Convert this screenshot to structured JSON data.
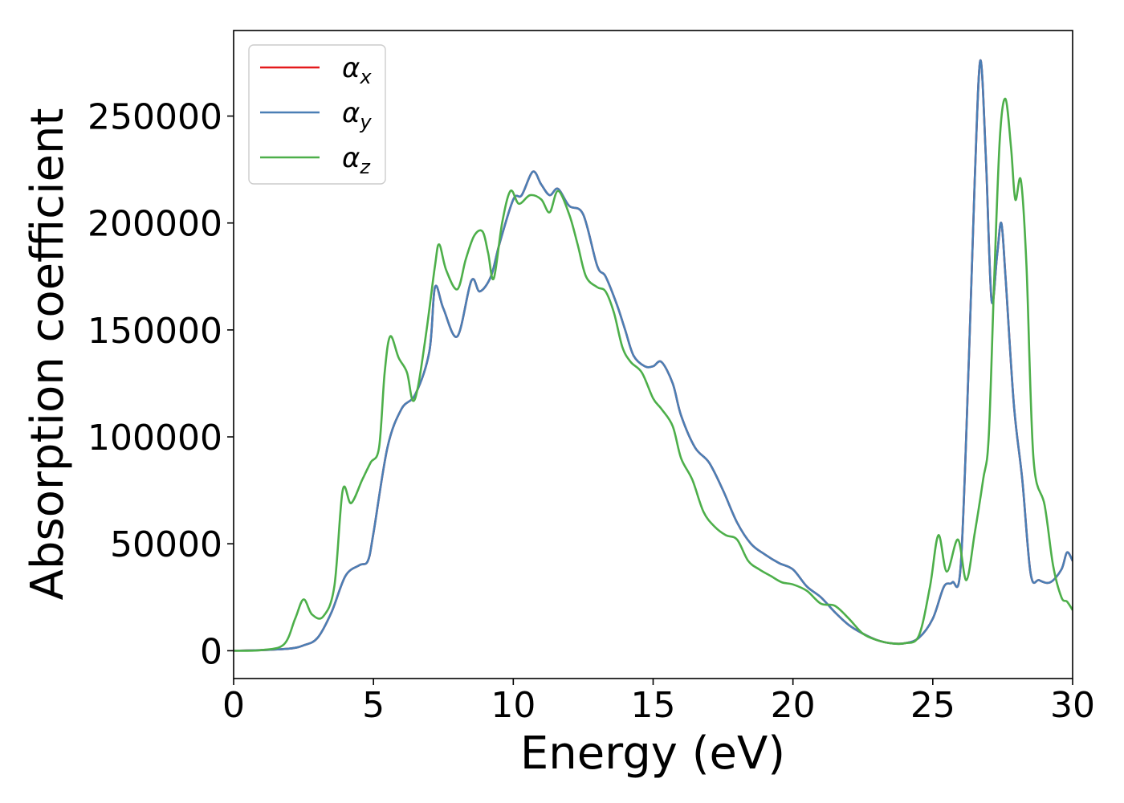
{
  "chart_data": {
    "type": "line",
    "title": "",
    "xlabel": "Energy (eV)",
    "ylabel": "Absorption coefficient",
    "xlim": [
      0,
      30
    ],
    "ylim": [
      -13000,
      290000
    ],
    "x_ticks": [
      0,
      5,
      10,
      15,
      20,
      25,
      30
    ],
    "y_ticks": [
      0,
      50000,
      100000,
      150000,
      200000,
      250000
    ],
    "grid": false,
    "legend_position": "upper-left",
    "series": [
      {
        "name": "α_x",
        "label_main": "α",
        "label_sub": "x",
        "color": "#e41a1c",
        "points": [
          [
            0,
            0
          ],
          [
            1,
            300
          ],
          [
            2,
            1000
          ],
          [
            2.5,
            2500
          ],
          [
            3,
            6000
          ],
          [
            3.5,
            18000
          ],
          [
            4,
            35000
          ],
          [
            4.5,
            40000
          ],
          [
            4.8,
            42000
          ],
          [
            5,
            55000
          ],
          [
            5.5,
            95000
          ],
          [
            6,
            113000
          ],
          [
            6.5,
            120000
          ],
          [
            7,
            140000
          ],
          [
            7.2,
            170000
          ],
          [
            7.5,
            160000
          ],
          [
            8,
            147000
          ],
          [
            8.5,
            173000
          ],
          [
            8.8,
            168000
          ],
          [
            9.2,
            175000
          ],
          [
            9.5,
            190000
          ],
          [
            10,
            211000
          ],
          [
            10.3,
            213000
          ],
          [
            10.7,
            224000
          ],
          [
            11,
            218000
          ],
          [
            11.3,
            213000
          ],
          [
            11.6,
            216000
          ],
          [
            12,
            208000
          ],
          [
            12.5,
            204000
          ],
          [
            13,
            180000
          ],
          [
            13.3,
            175000
          ],
          [
            13.7,
            162000
          ],
          [
            14,
            150000
          ],
          [
            14.3,
            138000
          ],
          [
            14.7,
            133000
          ],
          [
            15,
            133000
          ],
          [
            15.3,
            135000
          ],
          [
            15.7,
            125000
          ],
          [
            16,
            110000
          ],
          [
            16.5,
            95000
          ],
          [
            17,
            88000
          ],
          [
            17.5,
            75000
          ],
          [
            18,
            60000
          ],
          [
            18.5,
            50000
          ],
          [
            19,
            45000
          ],
          [
            19.5,
            41000
          ],
          [
            20,
            38000
          ],
          [
            20.5,
            30000
          ],
          [
            21,
            25000
          ],
          [
            21.5,
            18000
          ],
          [
            22,
            12000
          ],
          [
            22.5,
            8000
          ],
          [
            23,
            5000
          ],
          [
            23.5,
            3500
          ],
          [
            24,
            3500
          ],
          [
            24.5,
            6000
          ],
          [
            25,
            15000
          ],
          [
            25.4,
            30000
          ],
          [
            25.7,
            32000
          ],
          [
            26,
            40000
          ],
          [
            26.3,
            140000
          ],
          [
            26.5,
            220000
          ],
          [
            26.7,
            276000
          ],
          [
            26.9,
            230000
          ],
          [
            27.1,
            164000
          ],
          [
            27.3,
            185000
          ],
          [
            27.45,
            200000
          ],
          [
            27.6,
            175000
          ],
          [
            27.9,
            115000
          ],
          [
            28.2,
            80000
          ],
          [
            28.5,
            36000
          ],
          [
            28.8,
            33000
          ],
          [
            29.2,
            32000
          ],
          [
            29.6,
            38000
          ],
          [
            29.8,
            46000
          ],
          [
            30,
            42000
          ]
        ]
      },
      {
        "name": "α_y",
        "label_main": "α",
        "label_sub": "y",
        "color": "#4a7fb5",
        "points": [
          [
            0,
            0
          ],
          [
            1,
            300
          ],
          [
            2,
            1000
          ],
          [
            2.5,
            2500
          ],
          [
            3,
            6000
          ],
          [
            3.5,
            18000
          ],
          [
            4,
            35000
          ],
          [
            4.5,
            40000
          ],
          [
            4.8,
            42000
          ],
          [
            5,
            55000
          ],
          [
            5.5,
            95000
          ],
          [
            6,
            113000
          ],
          [
            6.5,
            120000
          ],
          [
            7,
            140000
          ],
          [
            7.2,
            170000
          ],
          [
            7.5,
            160000
          ],
          [
            8,
            147000
          ],
          [
            8.5,
            173000
          ],
          [
            8.8,
            168000
          ],
          [
            9.2,
            175000
          ],
          [
            9.5,
            190000
          ],
          [
            10,
            211000
          ],
          [
            10.3,
            213000
          ],
          [
            10.7,
            224000
          ],
          [
            11,
            218000
          ],
          [
            11.3,
            213000
          ],
          [
            11.6,
            216000
          ],
          [
            12,
            208000
          ],
          [
            12.5,
            204000
          ],
          [
            13,
            180000
          ],
          [
            13.3,
            175000
          ],
          [
            13.7,
            162000
          ],
          [
            14,
            150000
          ],
          [
            14.3,
            138000
          ],
          [
            14.7,
            133000
          ],
          [
            15,
            133000
          ],
          [
            15.3,
            135000
          ],
          [
            15.7,
            125000
          ],
          [
            16,
            110000
          ],
          [
            16.5,
            95000
          ],
          [
            17,
            88000
          ],
          [
            17.5,
            75000
          ],
          [
            18,
            60000
          ],
          [
            18.5,
            50000
          ],
          [
            19,
            45000
          ],
          [
            19.5,
            41000
          ],
          [
            20,
            38000
          ],
          [
            20.5,
            30000
          ],
          [
            21,
            25000
          ],
          [
            21.5,
            18000
          ],
          [
            22,
            12000
          ],
          [
            22.5,
            8000
          ],
          [
            23,
            5000
          ],
          [
            23.5,
            3500
          ],
          [
            24,
            3500
          ],
          [
            24.5,
            6000
          ],
          [
            25,
            15000
          ],
          [
            25.4,
            30000
          ],
          [
            25.7,
            32000
          ],
          [
            26,
            40000
          ],
          [
            26.3,
            140000
          ],
          [
            26.5,
            220000
          ],
          [
            26.7,
            276000
          ],
          [
            26.9,
            230000
          ],
          [
            27.1,
            164000
          ],
          [
            27.3,
            185000
          ],
          [
            27.45,
            200000
          ],
          [
            27.6,
            175000
          ],
          [
            27.9,
            115000
          ],
          [
            28.2,
            80000
          ],
          [
            28.5,
            36000
          ],
          [
            28.8,
            33000
          ],
          [
            29.2,
            32000
          ],
          [
            29.6,
            38000
          ],
          [
            29.8,
            46000
          ],
          [
            30,
            42000
          ]
        ]
      },
      {
        "name": "α_z",
        "label_main": "α",
        "label_sub": "z",
        "color": "#4daf4a",
        "points": [
          [
            0,
            0
          ],
          [
            1,
            300
          ],
          [
            1.8,
            3000
          ],
          [
            2.2,
            15000
          ],
          [
            2.5,
            24000
          ],
          [
            2.8,
            17000
          ],
          [
            3.2,
            16000
          ],
          [
            3.6,
            30000
          ],
          [
            3.9,
            75000
          ],
          [
            4.2,
            69000
          ],
          [
            4.6,
            80000
          ],
          [
            4.9,
            88000
          ],
          [
            5.2,
            95000
          ],
          [
            5.4,
            130000
          ],
          [
            5.6,
            147000
          ],
          [
            5.9,
            137000
          ],
          [
            6.2,
            130000
          ],
          [
            6.4,
            117000
          ],
          [
            6.6,
            124000
          ],
          [
            6.9,
            150000
          ],
          [
            7.2,
            180000
          ],
          [
            7.35,
            190000
          ],
          [
            7.6,
            178000
          ],
          [
            8,
            169000
          ],
          [
            8.3,
            183000
          ],
          [
            8.6,
            194000
          ],
          [
            8.9,
            196000
          ],
          [
            9.1,
            186000
          ],
          [
            9.3,
            174000
          ],
          [
            9.6,
            200000
          ],
          [
            9.9,
            215000
          ],
          [
            10.2,
            209000
          ],
          [
            10.6,
            213000
          ],
          [
            11,
            211000
          ],
          [
            11.3,
            205000
          ],
          [
            11.6,
            215000
          ],
          [
            12,
            204000
          ],
          [
            12.3,
            190000
          ],
          [
            12.6,
            175000
          ],
          [
            13,
            170000
          ],
          [
            13.3,
            168000
          ],
          [
            13.6,
            158000
          ],
          [
            13.9,
            142000
          ],
          [
            14.2,
            135000
          ],
          [
            14.6,
            130000
          ],
          [
            15,
            118000
          ],
          [
            15.3,
            113000
          ],
          [
            15.7,
            105000
          ],
          [
            16,
            90000
          ],
          [
            16.4,
            80000
          ],
          [
            16.8,
            65000
          ],
          [
            17.2,
            58000
          ],
          [
            17.6,
            54000
          ],
          [
            18,
            52000
          ],
          [
            18.4,
            42000
          ],
          [
            18.8,
            38000
          ],
          [
            19.2,
            35000
          ],
          [
            19.6,
            32000
          ],
          [
            20,
            31000
          ],
          [
            20.5,
            28000
          ],
          [
            21,
            22000
          ],
          [
            21.5,
            21000
          ],
          [
            22,
            15000
          ],
          [
            22.5,
            8000
          ],
          [
            23,
            5000
          ],
          [
            23.5,
            3500
          ],
          [
            24,
            3500
          ],
          [
            24.5,
            7000
          ],
          [
            24.9,
            30000
          ],
          [
            25.2,
            54000
          ],
          [
            25.5,
            37000
          ],
          [
            25.9,
            52000
          ],
          [
            26.2,
            33000
          ],
          [
            26.5,
            55000
          ],
          [
            26.8,
            80000
          ],
          [
            27,
            100000
          ],
          [
            27.2,
            175000
          ],
          [
            27.4,
            240000
          ],
          [
            27.6,
            258000
          ],
          [
            27.8,
            235000
          ],
          [
            27.95,
            211000
          ],
          [
            28.15,
            220000
          ],
          [
            28.35,
            180000
          ],
          [
            28.6,
            90000
          ],
          [
            29,
            68000
          ],
          [
            29.3,
            40000
          ],
          [
            29.6,
            25000
          ],
          [
            29.8,
            23000
          ],
          [
            30,
            19000
          ]
        ]
      }
    ]
  }
}
